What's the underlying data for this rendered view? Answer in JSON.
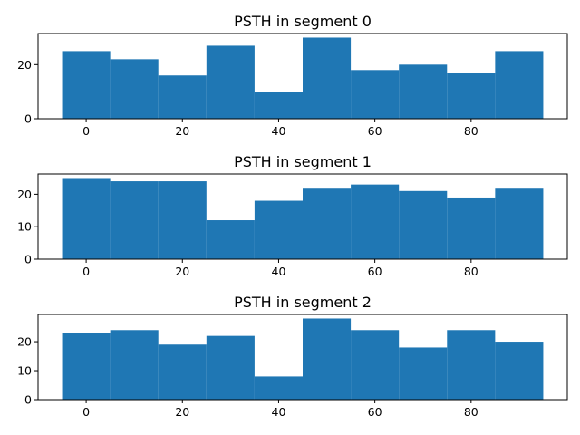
{
  "chart_data": [
    {
      "type": "bar",
      "title": "PSTH in segment 0",
      "xlabel": "",
      "ylabel": "",
      "bin_edges": [
        -5,
        5,
        15,
        25,
        35,
        45,
        55,
        65,
        75,
        85,
        95
      ],
      "values": [
        25,
        22,
        16,
        27,
        10,
        30,
        18,
        20,
        17,
        25
      ],
      "xlim": [
        -10,
        100
      ],
      "ylim": [
        0,
        31.5
      ],
      "xticks": [
        0,
        20,
        40,
        60,
        80
      ],
      "yticks": [
        0,
        20
      ],
      "color": "#1f77b4",
      "grid": false
    },
    {
      "type": "bar",
      "title": "PSTH in segment 1",
      "xlabel": "",
      "ylabel": "",
      "bin_edges": [
        -5,
        5,
        15,
        25,
        35,
        45,
        55,
        65,
        75,
        85,
        95
      ],
      "values": [
        25,
        24,
        24,
        12,
        18,
        22,
        23,
        21,
        19,
        22
      ],
      "xlim": [
        -10,
        100
      ],
      "ylim": [
        0,
        26.25
      ],
      "xticks": [
        0,
        20,
        40,
        60,
        80
      ],
      "yticks": [
        0,
        10,
        20
      ],
      "color": "#1f77b4",
      "grid": false
    },
    {
      "type": "bar",
      "title": "PSTH in segment 2",
      "xlabel": "",
      "ylabel": "",
      "bin_edges": [
        -5,
        5,
        15,
        25,
        35,
        45,
        55,
        65,
        75,
        85,
        95
      ],
      "values": [
        23,
        24,
        19,
        22,
        8,
        28,
        24,
        18,
        24,
        20
      ],
      "xlim": [
        -10,
        100
      ],
      "ylim": [
        0,
        29.4
      ],
      "xticks": [
        0,
        20,
        40,
        60,
        80
      ],
      "yticks": [
        0,
        10,
        20
      ],
      "color": "#1f77b4",
      "grid": false
    }
  ]
}
